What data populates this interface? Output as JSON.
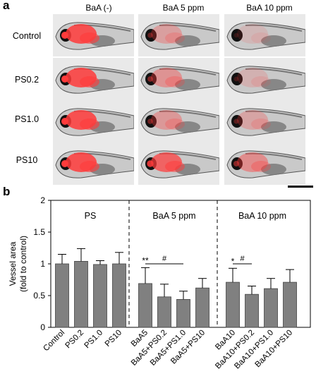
{
  "panel_a": {
    "letter": "a",
    "columns": [
      "BaA (-)",
      "BaA 5 ppm",
      "BaA 10 ppm"
    ],
    "rows": [
      "Control",
      "PS0.2",
      "PS1.0",
      "PS10"
    ],
    "red_intensity": [
      [
        1.0,
        0.35,
        0.15
      ],
      [
        1.0,
        0.45,
        0.2
      ],
      [
        1.0,
        0.4,
        0.3
      ],
      [
        1.0,
        0.85,
        0.5
      ]
    ],
    "colors": {
      "fluorescence": "#ff3b3b",
      "fish_body": "#9a9a9a",
      "eye": "#111111",
      "background": "#e9e9e9"
    }
  },
  "panel_b": {
    "letter": "b",
    "chart_data": {
      "type": "bar",
      "ylabel_line1": "Vessel area",
      "ylabel_line2": "(fold to control)",
      "ylim": [
        0,
        2
      ],
      "yticks": [
        "0",
        "0.5",
        "1",
        "1.5",
        "2"
      ],
      "groups": [
        {
          "name": "PS",
          "categories": [
            "Control",
            "PS0.2",
            "PS1.0",
            "PS10"
          ]
        },
        {
          "name": "BaA 5 ppm",
          "categories": [
            "BaA5",
            "BaA5+PS0.2",
            "BaA5+PS1.0",
            "BaA5+PS10"
          ]
        },
        {
          "name": "BaA 10 ppm",
          "categories": [
            "BaA10",
            "BaA10+PS0.2",
            "BaA10+PS1.0",
            "BaA10+PS10"
          ]
        }
      ],
      "values": [
        1.0,
        1.04,
        0.99,
        1.0,
        0.69,
        0.48,
        0.44,
        0.62,
        0.71,
        0.52,
        0.61,
        0.71
      ],
      "errors": [
        0.15,
        0.2,
        0.06,
        0.18,
        0.25,
        0.2,
        0.13,
        0.15,
        0.22,
        0.13,
        0.16,
        0.2
      ],
      "annotations": [
        {
          "bar": 4,
          "text": "**"
        },
        {
          "bar": 8,
          "text": "*"
        }
      ],
      "brackets": [
        {
          "from": 4,
          "to": 6,
          "y": 1.0,
          "text": "#"
        },
        {
          "from": 8,
          "to": 9,
          "y": 1.0,
          "text": "#"
        }
      ],
      "colors": {
        "bar": "#808080",
        "axis": "#000000"
      }
    }
  }
}
